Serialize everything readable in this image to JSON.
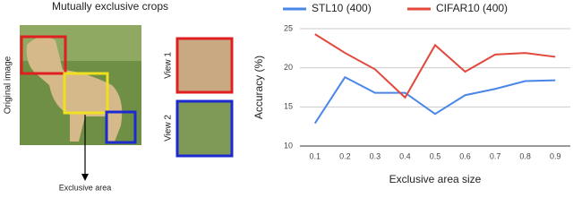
{
  "diagram": {
    "title": "Mutually exclusive crops",
    "image_label": "Original image",
    "view1_label": "View 1",
    "view2_label": "View 2",
    "arrow_label": "Exclusive area"
  },
  "chart_data": {
    "type": "line",
    "x": [
      0.1,
      0.2,
      0.3,
      0.4,
      0.5,
      0.6,
      0.7,
      0.8,
      0.9
    ],
    "series": [
      {
        "name": "STL10 (400)",
        "color": "#4a86e8",
        "values": [
          12.9,
          18.8,
          16.8,
          16.8,
          14.1,
          16.5,
          17.3,
          18.3,
          18.4
        ]
      },
      {
        "name": "CIFAR10 (400)",
        "color": "#e2483c",
        "values": [
          24.3,
          21.9,
          19.8,
          16.2,
          22.9,
          19.5,
          21.7,
          21.9,
          21.4
        ]
      }
    ],
    "xlabel": "Exclusive area size",
    "ylabel": "Accuracy (%)",
    "xlim": [
      0.05,
      0.95
    ],
    "xticks": [
      0.1,
      0.2,
      0.3,
      0.4,
      0.5,
      0.6,
      0.7,
      0.8,
      0.9
    ],
    "ylim": [
      10,
      25
    ],
    "yticks": [
      10,
      15,
      20,
      25
    ],
    "grid": true
  }
}
